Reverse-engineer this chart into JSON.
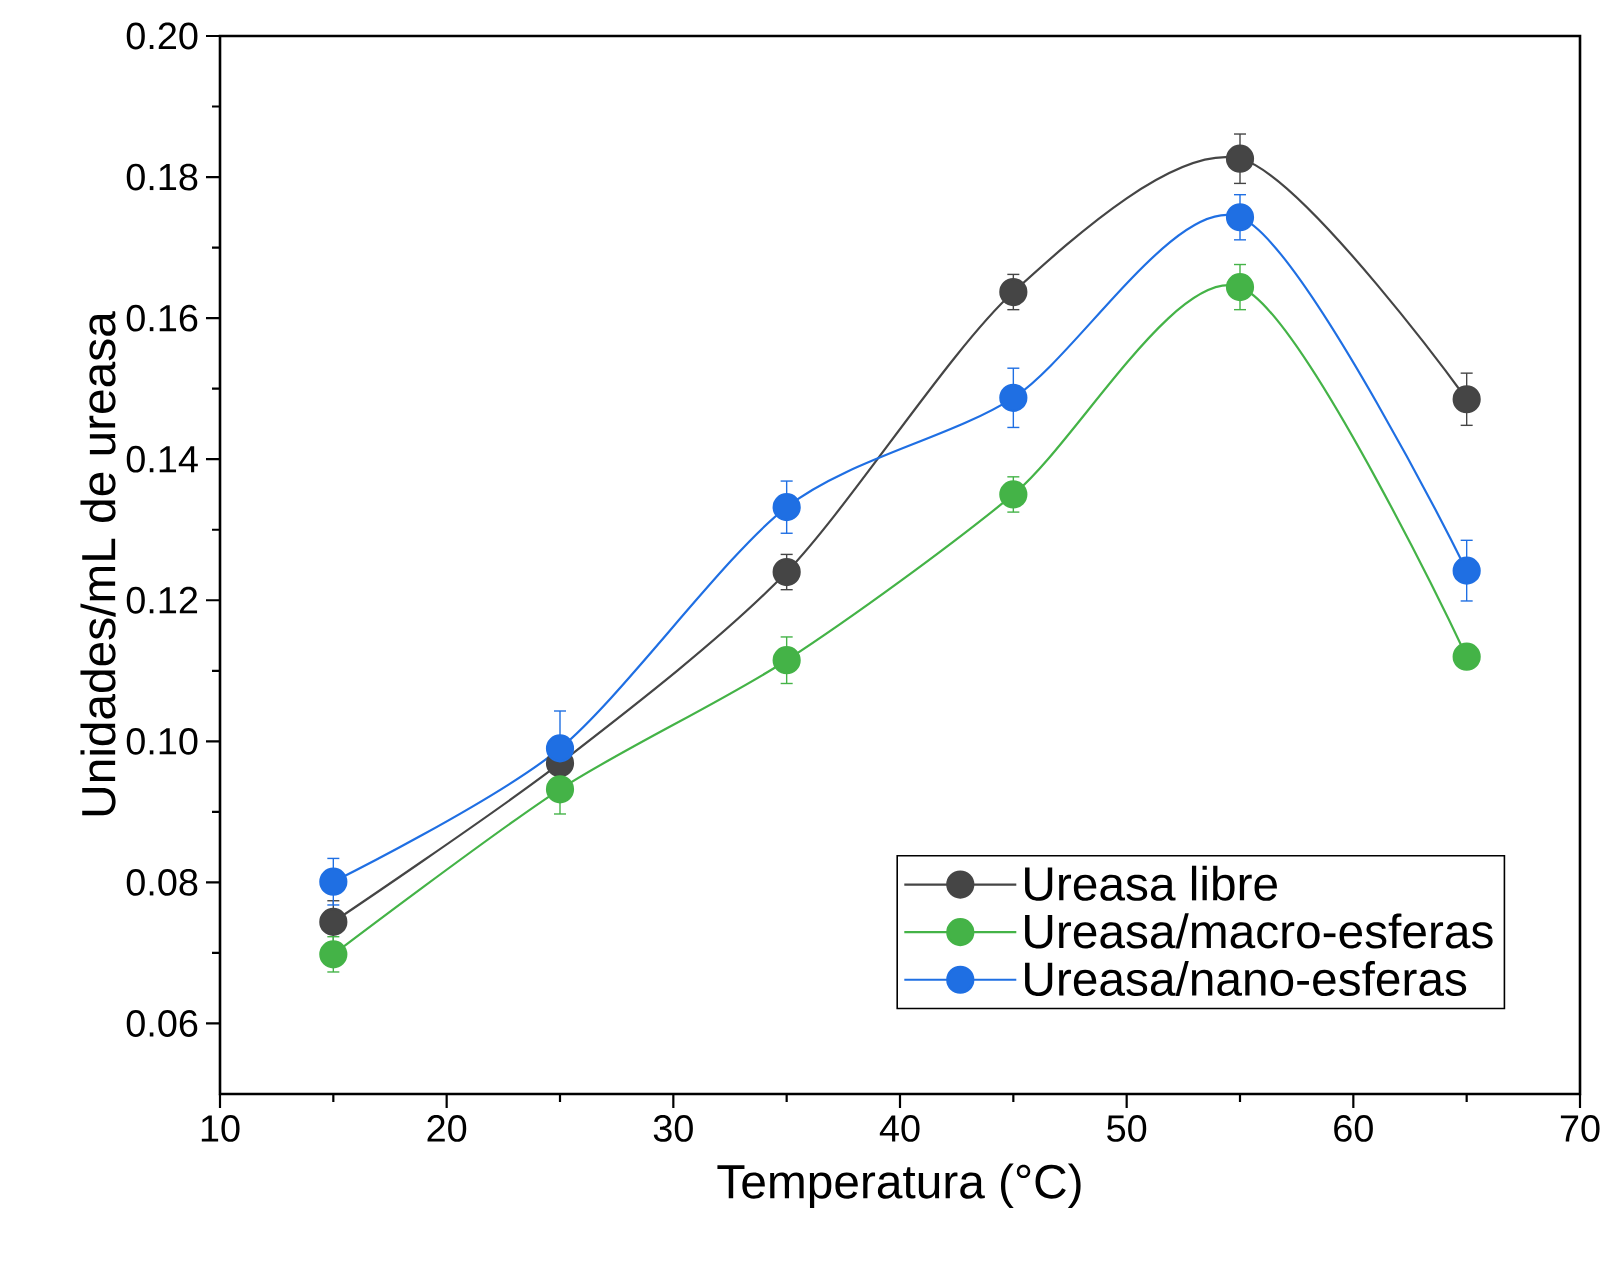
{
  "chart_data": {
    "type": "line",
    "xlabel": "Temperatura (°C)",
    "ylabel": "Unidades/mL de ureasa",
    "x": [
      15,
      25,
      35,
      45,
      55,
      65
    ],
    "series": [
      {
        "name": "Ureasa libre",
        "color": "#454545",
        "values": [
          0.0744,
          0.0969,
          0.124,
          0.1637,
          0.1826,
          0.1485
        ],
        "errors": [
          0.003,
          null,
          0.0025,
          0.0025,
          0.0035,
          0.0037
        ]
      },
      {
        "name": "Ureasa/macro-esferas",
        "color": "#44b347",
        "values": [
          0.0698,
          0.0932,
          0.1115,
          0.135,
          0.1644,
          0.112
        ],
        "errors": [
          0.0025,
          0.0035,
          0.0033,
          0.0025,
          0.0032,
          0.001
        ]
      },
      {
        "name": "Ureasa/nano-esferas",
        "color": "#1f6fe3",
        "values": [
          0.0801,
          0.099,
          0.1332,
          0.1487,
          0.1743,
          0.1242
        ],
        "errors": [
          0.0033,
          0.0053,
          0.0037,
          0.0042,
          0.0032,
          0.0043
        ]
      }
    ],
    "xlim": [
      10,
      70
    ],
    "xticks": [
      10,
      20,
      30,
      40,
      50,
      60,
      70
    ],
    "ylim": [
      0.05,
      0.2
    ],
    "yticks": [
      {
        "value": 0.06,
        "label": "0.06"
      },
      {
        "value": 0.08,
        "label": "0.08"
      },
      {
        "value": 0.1,
        "label": "0.10"
      },
      {
        "value": 0.12,
        "label": "0.12"
      },
      {
        "value": 0.14,
        "label": "0.14"
      },
      {
        "value": 0.16,
        "label": "0.16"
      },
      {
        "value": 0.18,
        "label": "0.18"
      },
      {
        "value": 0.2,
        "label": "0.20"
      }
    ],
    "grid": false,
    "legend": "bottom right",
    "marker": "circle",
    "line_style": "solid"
  }
}
